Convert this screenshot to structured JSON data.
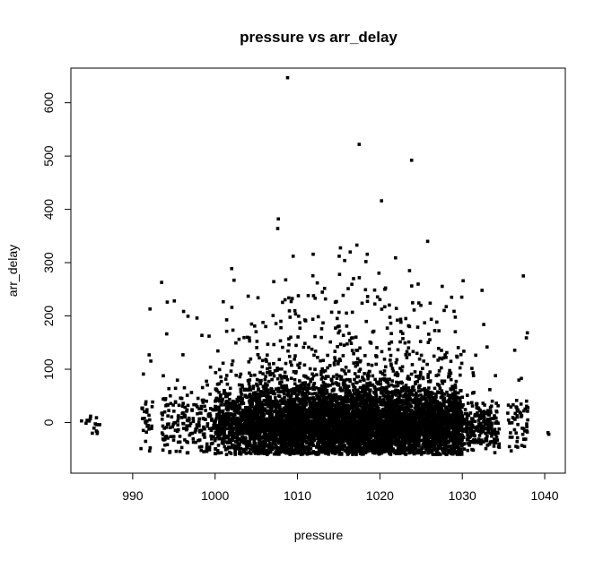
{
  "chart_data": {
    "type": "scatter",
    "title": "pressure vs arr_delay",
    "xlabel": "pressure",
    "ylabel": "arr_delay",
    "xlim": [
      982.5,
      1042.5
    ],
    "ylim": [
      -95,
      665
    ],
    "x_ticks": [
      990,
      1000,
      1010,
      1020,
      1030,
      1040
    ],
    "x_tick_labels": [
      "990",
      "1000",
      "1010",
      "1020",
      "1030",
      "1040"
    ],
    "y_ticks": [
      0,
      100,
      200,
      300,
      400,
      500,
      600
    ],
    "y_tick_labels": [
      "0",
      "100",
      "200",
      "300",
      "400",
      "500",
      "600"
    ],
    "grid": false,
    "legend": "none",
    "marker_color": "#000000",
    "notable_points": [
      {
        "x": 1008.8,
        "y": 647
      },
      {
        "x": 1020.2,
        "y": 416
      },
      {
        "x": 1007.6,
        "y": 364
      },
      {
        "x": 1025.8,
        "y": 340
      },
      {
        "x": 1017.2,
        "y": 333
      },
      {
        "x": 1016.4,
        "y": 320
      },
      {
        "x": 1018.3,
        "y": 302
      },
      {
        "x": 1023.6,
        "y": 285
      },
      {
        "x": 1015.1,
        "y": 278
      },
      {
        "x": 1037.4,
        "y": 275
      },
      {
        "x": 1016.8,
        "y": 270
      },
      {
        "x": 1002.3,
        "y": 267
      },
      {
        "x": 1030.1,
        "y": 266
      },
      {
        "x": 1012.4,
        "y": 262
      },
      {
        "x": 1020.6,
        "y": 250
      },
      {
        "x": 1032.4,
        "y": 248
      },
      {
        "x": 1010.1,
        "y": 238
      },
      {
        "x": 1028.7,
        "y": 235
      },
      {
        "x": 1005.2,
        "y": 234
      },
      {
        "x": 994.2,
        "y": 226
      },
      {
        "x": 1026.1,
        "y": 224
      },
      {
        "x": 992.1,
        "y": 213
      },
      {
        "x": 1022.0,
        "y": 214
      },
      {
        "x": 997.8,
        "y": 196
      },
      {
        "x": 1032.6,
        "y": 184
      },
      {
        "x": 991.3,
        "y": 91
      },
      {
        "x": 992.0,
        "y": 127
      },
      {
        "x": 983.8,
        "y": 3
      },
      {
        "x": 984.9,
        "y": 12
      },
      {
        "x": 985.6,
        "y": 9
      },
      {
        "x": 985.1,
        "y": -20
      },
      {
        "x": 985.7,
        "y": -18
      },
      {
        "x": 1040.4,
        "y": -19
      },
      {
        "x": 1040.5,
        "y": -22
      }
    ],
    "density_bands": [
      {
        "x": [
          984,
          986
        ],
        "y_center": 0,
        "spread": 10,
        "count": 10
      },
      {
        "x": [
          991,
          992.5
        ],
        "y_center": 0,
        "spread": 30,
        "count": 30
      },
      {
        "x": [
          993.5,
          1000
        ],
        "y_center": 0,
        "spread": 30,
        "count": 200
      },
      {
        "x": [
          1000,
          1004
        ],
        "y_center": 0,
        "spread": 32,
        "count": 500
      },
      {
        "x": [
          1004,
          1008
        ],
        "y_center": 0,
        "spread": 35,
        "count": 800
      },
      {
        "x": [
          1008,
          1013
        ],
        "y_center": 0,
        "spread": 35,
        "count": 1200
      },
      {
        "x": [
          1013,
          1020
        ],
        "y_center": 0,
        "spread": 35,
        "count": 1800
      },
      {
        "x": [
          1020,
          1026
        ],
        "y_center": 0,
        "spread": 33,
        "count": 1500
      },
      {
        "x": [
          1026,
          1030
        ],
        "y_center": -5,
        "spread": 30,
        "count": 900
      },
      {
        "x": [
          1030,
          1034.5
        ],
        "y_center": -10,
        "spread": 20,
        "count": 250
      },
      {
        "x": [
          1035.5,
          1038
        ],
        "y_center": 0,
        "spread": 25,
        "count": 60
      }
    ]
  }
}
